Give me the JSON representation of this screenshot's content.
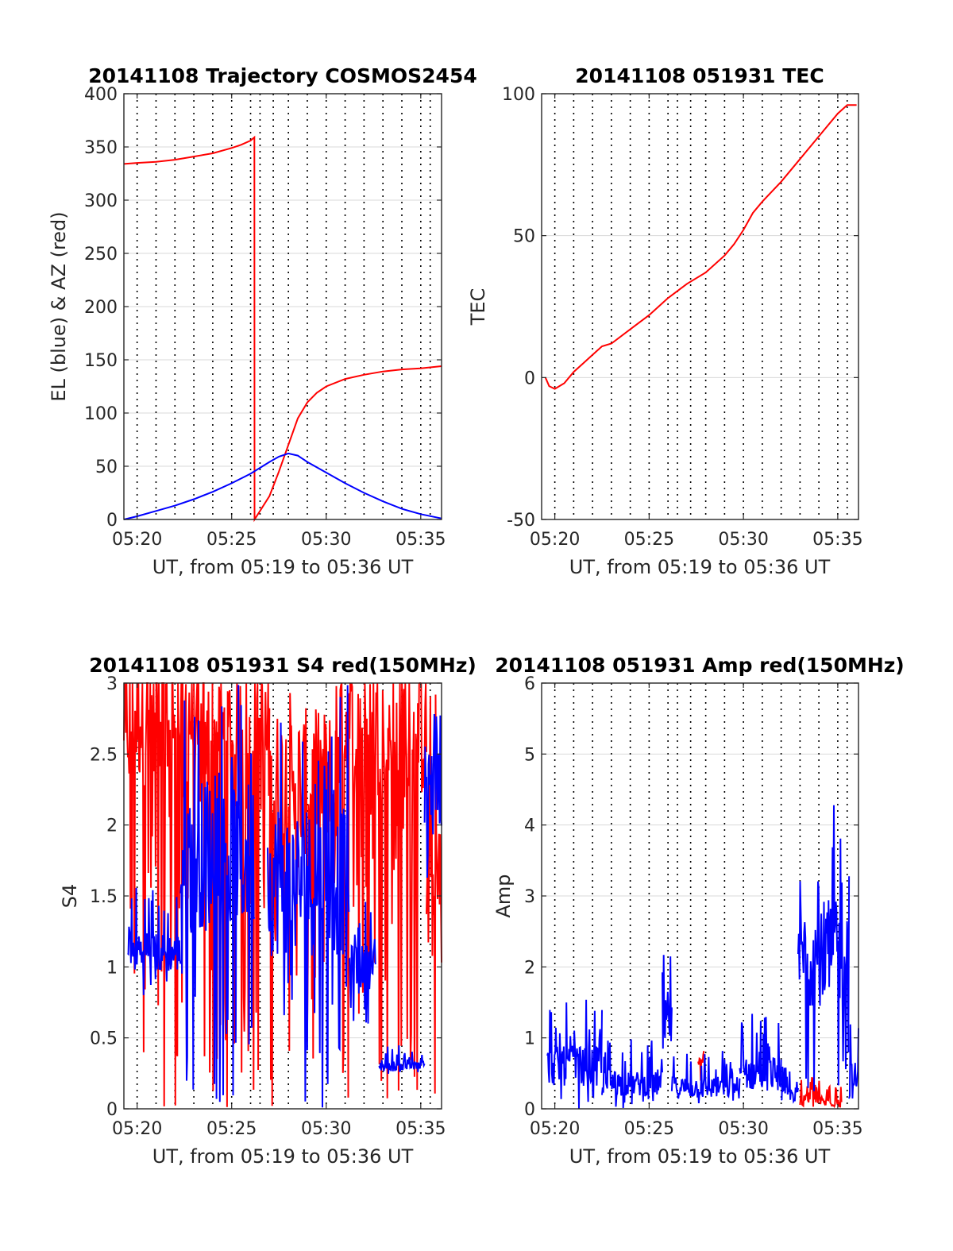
{
  "figure": {
    "background": "#ffffff",
    "colors": {
      "el": "#0000ff",
      "az": "#ff0000",
      "red": "#ff0000",
      "blue": "#0000ff",
      "grid": "#d9d9d9",
      "vlines": "#000000"
    }
  },
  "chart_data": [
    {
      "type": "line",
      "title": "20141108 Trajectory COSMOS2454",
      "xlabel": "UT, from 05:19 to 05:36 UT",
      "ylabel": "EL (blue) & AZ (red)",
      "xlim": [
        19.3,
        36.1
      ],
      "ylim": [
        0,
        400
      ],
      "x_unit": "minutes after 05:00 UT",
      "xticks": [
        20,
        25,
        30,
        35
      ],
      "xtick_labels": [
        "05:20",
        "05:25",
        "05:30",
        "05:35"
      ],
      "yticks": [
        0,
        50,
        100,
        150,
        200,
        250,
        300,
        350,
        400
      ],
      "ytick_labels": [
        "0",
        "50",
        "100",
        "150",
        "200",
        "250",
        "300",
        "350",
        "400"
      ],
      "grid": true,
      "dotted_vlines": [
        20.0,
        21.0,
        22.0,
        23.0,
        24.0,
        25.0,
        26.0,
        26.5,
        27.2,
        28.0,
        29.0,
        30.0,
        31.0,
        32.0,
        33.0,
        34.0,
        35.0,
        35.5
      ],
      "series": [
        {
          "color": "#ff0000",
          "x": [
            19.3,
            20,
            21,
            22,
            23,
            24,
            25,
            25.5,
            26.0,
            26.2,
            26.21,
            26.5,
            27.0,
            27.5,
            28.0,
            28.5,
            29.0,
            29.5,
            30.0,
            31.0,
            32.0,
            33.0,
            34.0,
            35.0,
            36.1
          ],
          "y": [
            334,
            335,
            336,
            338,
            341,
            344,
            349,
            352,
            356,
            359,
            0,
            8,
            22,
            45,
            70,
            95,
            110,
            119,
            125,
            132,
            136,
            139,
            141,
            142,
            144
          ]
        },
        {
          "color": "#0000ff",
          "x": [
            19.3,
            20,
            21,
            22,
            23,
            24,
            25,
            26,
            27,
            27.5,
            28.0,
            28.5,
            29.0,
            30.0,
            31.0,
            32.0,
            33.0,
            34.0,
            35.0,
            36.1
          ],
          "y": [
            0,
            3,
            8,
            13,
            19,
            26,
            34,
            43,
            54,
            59,
            62,
            60,
            54,
            44,
            34,
            25,
            17,
            10,
            5,
            1
          ]
        }
      ]
    },
    {
      "type": "line",
      "title": "20141108 051931 TEC",
      "xlabel": "UT, from 05:19 to 05:36 UT",
      "ylabel": "TEC",
      "xlim": [
        19.3,
        36.1
      ],
      "ylim": [
        -50,
        100
      ],
      "x_unit": "minutes after 05:00 UT",
      "xticks": [
        20,
        25,
        30,
        35
      ],
      "xtick_labels": [
        "05:20",
        "05:25",
        "05:30",
        "05:35"
      ],
      "yticks": [
        -50,
        0,
        50,
        100
      ],
      "ytick_labels": [
        "-50",
        "0",
        "50",
        "100"
      ],
      "grid": true,
      "dotted_vlines": [
        20.0,
        21.0,
        22.0,
        23.0,
        24.0,
        25.0,
        26.0,
        26.5,
        27.2,
        28.0,
        29.0,
        30.0,
        31.0,
        32.0,
        33.0,
        34.0,
        35.0,
        35.5
      ],
      "series": [
        {
          "color": "#ff0000",
          "x": [
            19.5,
            19.7,
            20.0,
            20.5,
            21.0,
            21.5,
            22.0,
            22.5,
            23.0,
            24.0,
            25.0,
            26.0,
            27.0,
            28.0,
            29.0,
            29.5,
            30.0,
            30.5,
            31.0,
            32.0,
            33.0,
            34.0,
            35.0,
            35.5,
            36.0
          ],
          "y": [
            0,
            -3,
            -4,
            -2,
            2,
            5,
            8,
            11,
            12,
            17,
            22,
            28,
            33,
            37,
            43,
            47,
            52,
            58,
            62,
            69,
            77,
            85,
            93,
            96,
            96
          ]
        }
      ]
    },
    {
      "type": "line",
      "title": "20141108 051931 S4 red(150MHz)",
      "xlabel": "UT, from 05:19 to 05:36 UT",
      "ylabel": "S4",
      "xlim": [
        19.3,
        36.1
      ],
      "ylim": [
        0,
        3
      ],
      "x_unit": "minutes after 05:00 UT",
      "xticks": [
        20,
        25,
        30,
        35
      ],
      "xtick_labels": [
        "05:20",
        "05:25",
        "05:30",
        "05:35"
      ],
      "yticks": [
        0,
        0.5,
        1,
        1.5,
        2,
        2.5,
        3
      ],
      "ytick_labels": [
        "0",
        "0.5",
        "1",
        "1.5",
        "2",
        "2.5",
        "3"
      ],
      "grid": true,
      "dotted_vlines": [
        20.0,
        21.0,
        22.0,
        23.0,
        24.0,
        25.0,
        26.0,
        26.5,
        27.2,
        28.0,
        29.0,
        30.0,
        31.0,
        32.0,
        33.0,
        34.0,
        35.0,
        35.5
      ],
      "series": [
        {
          "color": "#ff0000",
          "segments": [
            {
              "x_range": [
                19.3,
                23.0
              ],
              "y_min": 0,
              "y_max": 3,
              "baseline": 2.8
            },
            {
              "x_range": [
                23.0,
                27.0
              ],
              "y_min": 0,
              "y_max": 3,
              "baseline": 2.6
            },
            {
              "x_range": [
                27.0,
                30.5
              ],
              "y_min": 0,
              "y_max": 3,
              "baseline": 2.3
            },
            {
              "x_range": [
                30.5,
                35.3
              ],
              "y_min": 0,
              "y_max": 3,
              "baseline": 2.7
            },
            {
              "x_range": [
                35.3,
                36.1
              ],
              "y_min": 0,
              "y_max": 3,
              "baseline": 1.5
            }
          ]
        },
        {
          "color": "#0000ff",
          "segments": [
            {
              "x_range": [
                19.5,
                22.3
              ],
              "y_min": 0.8,
              "y_max": 1.6,
              "baseline": 1.1
            },
            {
              "x_range": [
                22.3,
                26.2
              ],
              "y_min": 0,
              "y_max": 3,
              "baseline": 1.8
            },
            {
              "x_range": [
                26.9,
                31.2
              ],
              "y_min": 0,
              "y_max": 3,
              "baseline": 1.6
            },
            {
              "x_range": [
                31.2,
                32.6
              ],
              "y_min": 0.6,
              "y_max": 1.5,
              "baseline": 1.0
            },
            {
              "x_range": [
                32.8,
                35.2
              ],
              "y_min": 0.24,
              "y_max": 0.45,
              "baseline": 0.3
            },
            {
              "x_range": [
                35.2,
                36.1
              ],
              "y_min": 1.2,
              "y_max": 3,
              "baseline": 2.3
            }
          ]
        }
      ]
    },
    {
      "type": "line",
      "title": "20141108 051931 Amp red(150MHz)",
      "xlabel": "UT, from 05:19 to 05:36 UT",
      "ylabel": "Amp",
      "xlim": [
        19.3,
        36.1
      ],
      "ylim": [
        0,
        6
      ],
      "x_unit": "minutes after 05:00 UT",
      "xticks": [
        20,
        25,
        30,
        35
      ],
      "xtick_labels": [
        "05:20",
        "05:25",
        "05:30",
        "05:35"
      ],
      "yticks": [
        0,
        1,
        2,
        3,
        4,
        5,
        6
      ],
      "ytick_labels": [
        "0",
        "1",
        "2",
        "3",
        "4",
        "5",
        "6"
      ],
      "grid": true,
      "dotted_vlines": [
        20.0,
        21.0,
        22.0,
        23.0,
        24.0,
        25.0,
        26.0,
        26.5,
        27.2,
        28.0,
        29.0,
        30.0,
        31.0,
        32.0,
        33.0,
        34.0,
        35.0,
        35.5
      ],
      "series": [
        {
          "color": "#ff0000",
          "segments": [
            {
              "x_range": [
                27.6,
                27.9
              ],
              "y_min": 0.3,
              "y_max": 1.1,
              "baseline": 0.7
            },
            {
              "x_range": [
                33.0,
                35.2
              ],
              "y_min": 0,
              "y_max": 0.5,
              "baseline": 0.1
            }
          ]
        },
        {
          "color": "#0000ff",
          "segments": [
            {
              "x_range": [
                19.6,
                22.5
              ],
              "y_min": 0,
              "y_max": 1.6,
              "baseline": 0.6
            },
            {
              "x_range": [
                22.5,
                25.7
              ],
              "y_min": 0,
              "y_max": 1.0,
              "baseline": 0.35
            },
            {
              "x_range": [
                25.7,
                26.2
              ],
              "y_min": 0.3,
              "y_max": 2.2,
              "baseline": 1.2
            },
            {
              "x_range": [
                26.2,
                29.8
              ],
              "y_min": 0,
              "y_max": 0.9,
              "baseline": 0.3
            },
            {
              "x_range": [
                29.8,
                32.0
              ],
              "y_min": 0,
              "y_max": 1.4,
              "baseline": 0.5
            },
            {
              "x_range": [
                32.0,
                32.9
              ],
              "y_min": 0,
              "y_max": 0.6,
              "baseline": 0.2
            },
            {
              "x_range": [
                32.9,
                35.6
              ],
              "y_min": 0,
              "y_max": 4.3,
              "baseline": 2.2
            },
            {
              "x_range": [
                35.6,
                36.1
              ],
              "y_min": 0,
              "y_max": 1.5,
              "baseline": 0.4
            }
          ]
        }
      ]
    }
  ]
}
